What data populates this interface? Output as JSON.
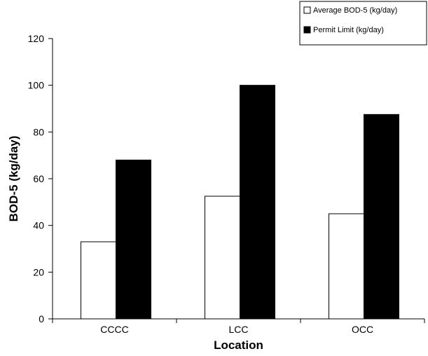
{
  "chart_data": {
    "type": "bar",
    "categories": [
      "CCCC",
      "LCC",
      "OCC"
    ],
    "series": [
      {
        "name": "Average BOD-5 (kg/day)",
        "values": [
          33,
          52.5,
          45
        ],
        "color": "#ffffff"
      },
      {
        "name": "Permit Limit (kg/day)",
        "values": [
          68,
          100,
          87.5
        ],
        "color": "#000000"
      }
    ],
    "title": "",
    "xlabel": "Location",
    "ylabel": "BOD-5 (kg/day)",
    "ylim": [
      0,
      120
    ],
    "yticks": [
      0,
      20,
      40,
      60,
      80,
      100,
      120
    ],
    "grid": false,
    "legend_position": "top-right"
  }
}
